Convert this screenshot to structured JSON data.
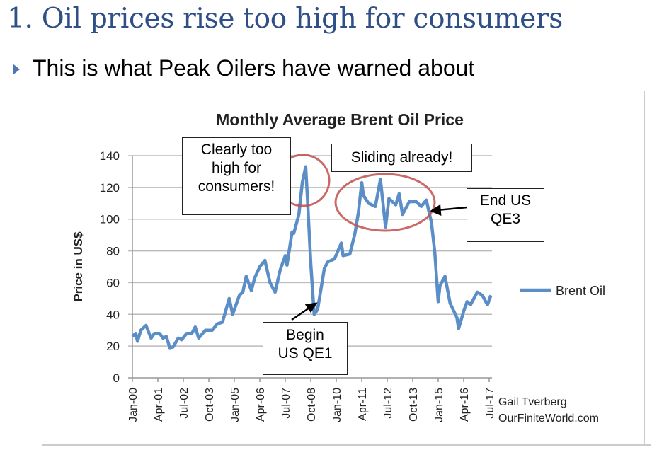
{
  "slide": {
    "title": "1. Oil prices rise too high for consumers",
    "bullet": "This is what Peak Oilers have warned about"
  },
  "chart_data": {
    "type": "line",
    "title": "Monthly Average Brent Oil Price",
    "ylabel": "Price in US$",
    "xlabel": "",
    "ylim": [
      0,
      140
    ],
    "yticks": [
      0,
      20,
      40,
      60,
      80,
      100,
      120,
      140
    ],
    "xtick_labels": [
      "Jan-00",
      "Apr-01",
      "Jul-02",
      "Oct-03",
      "Jan-05",
      "Apr-06",
      "Jul-07",
      "Oct-08",
      "Jan-10",
      "Apr-11",
      "Jul-12",
      "Oct-13",
      "Jan-15",
      "Apr-16",
      "Jul-17"
    ],
    "grid": "horizontal",
    "legend": "right",
    "color": "#5b8ec6",
    "series": [
      {
        "name": "Brent Oil",
        "x": [
          "2000-01",
          "2000-03",
          "2000-04",
          "2000-06",
          "2000-09",
          "2000-12",
          "2001-02",
          "2001-05",
          "2001-07",
          "2001-09",
          "2001-11",
          "2002-01",
          "2002-04",
          "2002-06",
          "2002-09",
          "2002-12",
          "2003-02",
          "2003-04",
          "2003-08",
          "2003-12",
          "2004-03",
          "2004-06",
          "2004-10",
          "2004-12",
          "2005-04",
          "2005-06",
          "2005-08",
          "2005-11",
          "2006-01",
          "2006-04",
          "2006-07",
          "2006-10",
          "2007-01",
          "2007-04",
          "2007-07",
          "2007-08",
          "2007-11",
          "2007-12",
          "2008-03",
          "2008-05",
          "2008-07",
          "2008-08",
          "2008-10",
          "2008-12",
          "2009-02",
          "2009-06",
          "2009-08",
          "2009-12",
          "2010-04",
          "2010-05",
          "2010-09",
          "2010-12",
          "2011-02",
          "2011-04",
          "2011-05",
          "2011-08",
          "2011-12",
          "2012-03",
          "2012-06",
          "2012-08",
          "2012-12",
          "2013-02",
          "2013-04",
          "2013-08",
          "2013-12",
          "2014-03",
          "2014-06",
          "2014-09",
          "2014-11",
          "2015-01",
          "2015-02",
          "2015-05",
          "2015-08",
          "2015-12",
          "2016-01",
          "2016-04",
          "2016-06",
          "2016-08",
          "2016-12",
          "2017-03",
          "2017-06",
          "2017-07",
          "2017-08"
        ],
        "values": [
          26,
          28,
          23,
          30,
          33,
          25,
          28,
          28,
          25,
          26,
          19,
          19.5,
          25,
          24,
          28,
          28,
          32,
          25,
          30,
          30,
          34,
          35,
          50,
          40,
          52,
          54,
          64,
          55,
          63,
          70,
          74,
          60,
          54,
          68,
          77,
          71,
          92,
          91,
          103,
          123,
          133,
          114,
          72,
          40,
          43,
          69,
          73,
          75,
          85,
          77,
          78,
          91,
          104,
          123,
          115,
          110,
          108,
          125,
          95,
          113,
          109,
          116,
          103,
          111,
          111,
          108,
          112,
          98,
          79,
          48,
          58,
          64,
          47,
          38,
          31,
          42,
          48,
          46,
          54,
          52,
          46,
          49,
          52
        ]
      }
    ],
    "annotations": [
      {
        "text": "Clearly too high for consumers!",
        "lines": [
          "Clearly too",
          "high for",
          "consumers!"
        ]
      },
      {
        "text": "Sliding already!"
      },
      {
        "text": "End US QE3",
        "lines": [
          "End US",
          "QE3"
        ]
      },
      {
        "text": "Begin US QE1",
        "lines": [
          "Begin",
          "US QE1"
        ]
      }
    ],
    "credit": [
      "Gail Tverberg",
      "OurFiniteWorld.com"
    ],
    "highlight_color": "#c0504d"
  }
}
